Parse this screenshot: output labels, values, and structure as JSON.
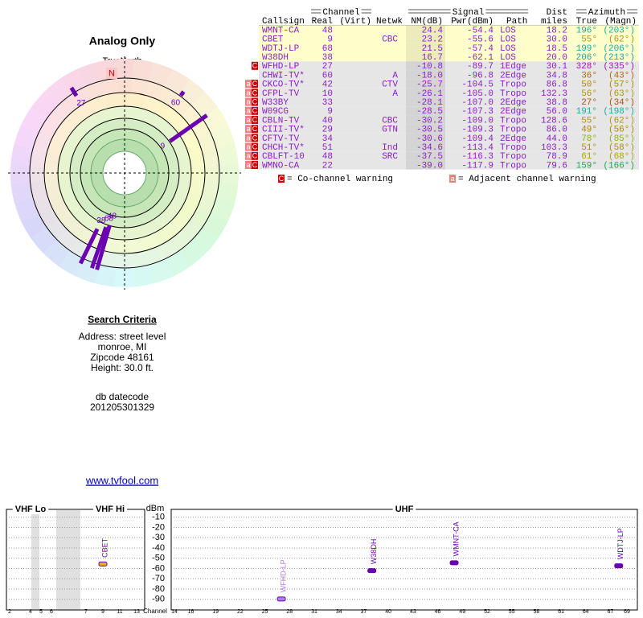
{
  "polar": {
    "title": "Analog Only",
    "north_label": "TrueNorth",
    "north": "N"
  },
  "table": {
    "group_headers": [
      "Channel",
      "Signal",
      "Dist",
      "Azimuth"
    ],
    "headers": [
      "Callsign",
      "Real",
      "(Virt)",
      "Netwk",
      "NM(dB)",
      "Pwr(dBm)",
      "Path",
      "miles",
      "True",
      "(Magn)"
    ],
    "rows": [
      {
        "warnings": [],
        "cells": [
          "WMNT-CA",
          "48",
          null,
          null,
          "24.4",
          "-54.4",
          "LOS",
          "18.2",
          "196°",
          "(203°)"
        ]
      },
      {
        "warnings": [],
        "cells": [
          "CBET",
          "9",
          null,
          "CBC",
          "23.2",
          "-55.6",
          "LOS",
          "30.0",
          "55°",
          "(62°)"
        ]
      },
      {
        "warnings": [],
        "cells": [
          "WDTJ-LP",
          "68",
          null,
          null,
          "21.5",
          "-57.4",
          "LOS",
          "18.5",
          "199°",
          "(206°)"
        ]
      },
      {
        "warnings": [],
        "cells": [
          "W38DH",
          "38",
          null,
          null,
          "16.7",
          "-62.1",
          "LOS",
          "20.0",
          "206°",
          "(213°)"
        ]
      },
      {
        "warnings": [
          "C"
        ],
        "cells": [
          "WFHD-LP",
          "27",
          null,
          null,
          "-10.8",
          "-89.7",
          "1Edge",
          "30.1",
          "328°",
          "(335°)"
        ]
      },
      {
        "warnings": [],
        "cells": [
          "CHWI-TV*",
          "60",
          null,
          "A",
          "-18.0",
          "-96.8",
          "2Edge",
          "34.8",
          "36°",
          "(43°)"
        ]
      },
      {
        "warnings": [
          "a",
          "C"
        ],
        "cells": [
          "CKCO-TV*",
          "42",
          null,
          "CTV",
          "-25.7",
          "-104.5",
          "Tropo",
          "86.8",
          "50°",
          "(57°)"
        ]
      },
      {
        "warnings": [
          "a",
          "C"
        ],
        "cells": [
          "CFPL-TV",
          "10",
          null,
          "A",
          "-26.1",
          "-105.0",
          "Tropo",
          "132.3",
          "56°",
          "(63°)"
        ]
      },
      {
        "warnings": [
          "a",
          "C"
        ],
        "cells": [
          "W33BY",
          "33",
          null,
          null,
          "-28.1",
          "-107.0",
          "2Edge",
          "38.8",
          "27°",
          "(34°)"
        ]
      },
      {
        "warnings": [
          "a",
          "C"
        ],
        "cells": [
          "W09CG",
          "9",
          null,
          null,
          "-28.5",
          "-107.3",
          "2Edge",
          "56.0",
          "191°",
          "(198°)"
        ]
      },
      {
        "warnings": [
          "a",
          "C"
        ],
        "cells": [
          "CBLN-TV",
          "40",
          null,
          "CBC",
          "-30.2",
          "-109.0",
          "Tropo",
          "128.6",
          "55°",
          "(62°)"
        ]
      },
      {
        "warnings": [
          "a",
          "C"
        ],
        "cells": [
          "CIII-TV*",
          "29",
          null,
          "GTN",
          "-30.5",
          "-109.3",
          "Tropo",
          "86.0",
          "49°",
          "(56°)"
        ]
      },
      {
        "warnings": [
          "a",
          "C"
        ],
        "cells": [
          "CFTV-TV",
          "34",
          null,
          null,
          "-30.6",
          "-109.4",
          "2Edge",
          "44.0",
          "78°",
          "(85°)"
        ]
      },
      {
        "warnings": [
          "a",
          "C"
        ],
        "cells": [
          "CHCH-TV*",
          "51",
          null,
          "Ind",
          "-34.6",
          "-113.4",
          "Tropo",
          "103.3",
          "51°",
          "(58°)"
        ]
      },
      {
        "warnings": [
          "a",
          "C"
        ],
        "cells": [
          "CBLFT-10",
          "48",
          null,
          "SRC",
          "-37.5",
          "-116.3",
          "Tropo",
          "78.9",
          "61°",
          "(68°)"
        ]
      },
      {
        "warnings": [
          "a",
          "C"
        ],
        "cells": [
          "WMNO-CA",
          "22",
          null,
          null,
          "-39.0",
          "-117.9",
          "Tropo",
          "79.6",
          "159°",
          "(166°)"
        ]
      }
    ],
    "legend": [
      {
        "icon": "C",
        "text": "= Co-channel warning"
      },
      {
        "icon": "a",
        "text": "= Adjacent channel warning"
      }
    ]
  },
  "search": {
    "title": "Search Criteria",
    "lines": [
      "Address: street level",
      "monroe, MI",
      "Zipcode 48161",
      "Height: 30.0 ft."
    ],
    "db_label": "db datecode",
    "db_code": "201205301329"
  },
  "link": "www.tvfool.com",
  "spectrum": {
    "y_label": "dBm",
    "x_label": "Channel",
    "ylim": [
      -100,
      0
    ],
    "yticks": [
      -10,
      -20,
      -30,
      -40,
      -50,
      -60,
      -70,
      -80,
      -90
    ],
    "panels": [
      {
        "title": "VHF Lo",
        "xlim": [
          2,
          6
        ],
        "xticks": [
          2,
          4,
          5,
          6
        ]
      },
      {
        "title": "VHF Hi",
        "xlim": [
          7,
          13
        ],
        "xticks": [
          7,
          9,
          11,
          13
        ]
      },
      {
        "title": "UHF",
        "xlim": [
          14,
          69
        ],
        "xticks": [
          14,
          16,
          19,
          22,
          25,
          28,
          31,
          34,
          37,
          40,
          43,
          46,
          49,
          52,
          55,
          58,
          61,
          64,
          67,
          69
        ]
      }
    ],
    "stations": [
      {
        "name": "CBET",
        "channel": 9,
        "dbm": -55.6,
        "color": "#e8b000"
      },
      {
        "name": "WFHD-LP",
        "channel": 27,
        "dbm": -89.7,
        "color": "#b080e0"
      },
      {
        "name": "W38DH",
        "channel": 38,
        "dbm": -62.1,
        "color": "#6a00b0"
      },
      {
        "name": "WMNT-CA",
        "channel": 48,
        "dbm": -54.4,
        "color": "#6a00b0"
      },
      {
        "name": "WDTJ-LP",
        "channel": 68,
        "dbm": -57.4,
        "color": "#6a00b0"
      }
    ]
  }
}
